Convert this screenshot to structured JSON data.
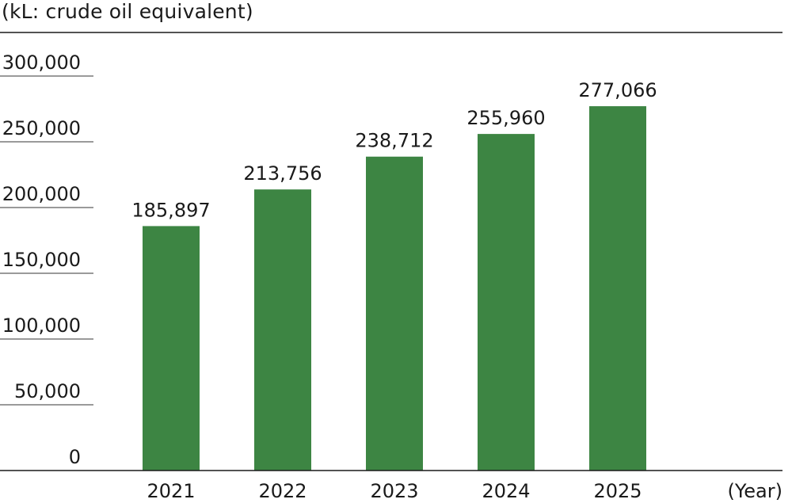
{
  "chart_data": {
    "type": "bar",
    "unit_label": "(kL: crude oil equivalent)",
    "x_unit_label": "(Year)",
    "categories": [
      "2021",
      "2022",
      "2023",
      "2024",
      "2025"
    ],
    "values": [
      185897,
      213756,
      238712,
      255960,
      277066
    ],
    "value_labels": [
      "185,897",
      "213,756",
      "238,712",
      "255,960",
      "277,066"
    ],
    "y_ticks": [
      0,
      50000,
      100000,
      150000,
      200000,
      250000,
      300000
    ],
    "y_tick_labels": [
      "0",
      "50,000",
      "100,000",
      "150,000",
      "200,000",
      "250,000",
      "300,000"
    ],
    "ylim": [
      0,
      300000
    ],
    "bar_color": "#3d8543",
    "grid": false
  }
}
